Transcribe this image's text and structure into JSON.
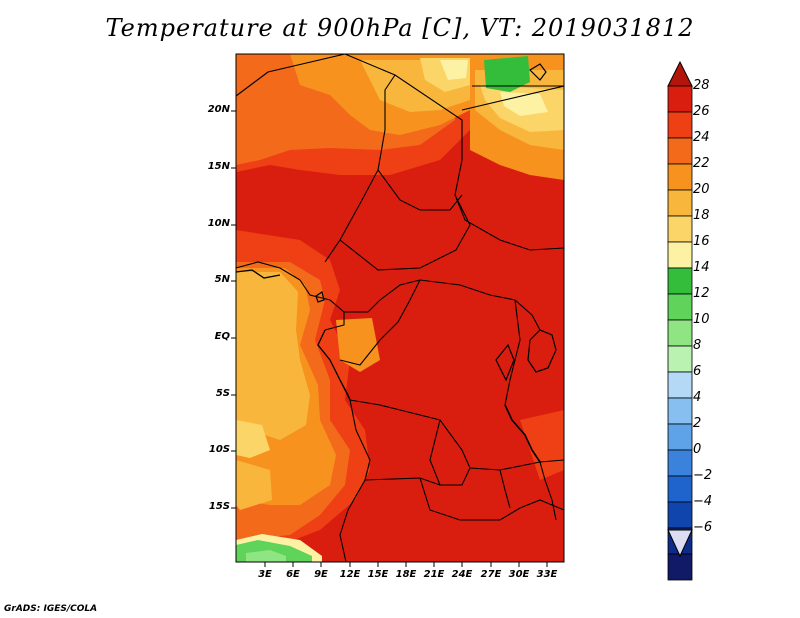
{
  "title": "Temperature at 900hPa [C], VT: 2019031812",
  "credit": "GrADS: IGES/COLA",
  "map": {
    "lat_labels": [
      "20N",
      "15N",
      "10N",
      "5N",
      "EQ",
      "5S",
      "10S",
      "15S"
    ],
    "lon_labels": [
      "3E",
      "6E",
      "9E",
      "12E",
      "15E",
      "18E",
      "21E",
      "24E",
      "27E",
      "30E",
      "33E"
    ],
    "dominant_field": "red-orange (24-28 C) over central Africa interior; orange (20-24 C) over Atlantic; green (12-16 C) patches at NE top and SW corner"
  },
  "colorbar": {
    "levels": [
      "28",
      "26",
      "24",
      "22",
      "20",
      "18",
      "16",
      "14",
      "12",
      "10",
      "8",
      "6",
      "4",
      "2",
      "0",
      "−2",
      "−4",
      "−6"
    ],
    "colors": [
      "#d91e10",
      "#ee3f15",
      "#f36a1a",
      "#f8921f",
      "#f9b63d",
      "#fbd567",
      "#fdf2a4",
      "#33bd3b",
      "#5fd35a",
      "#8fe582",
      "#baf2b2",
      "#b4d9f6",
      "#86bff0",
      "#5ea2e8",
      "#3b82dd",
      "#1f64cc",
      "#0f45ad",
      "#0c2b8a",
      "#101a66"
    ],
    "upper_arrow_color": "#b4150b",
    "lower_arrow_color": "#dcdcf2"
  }
}
